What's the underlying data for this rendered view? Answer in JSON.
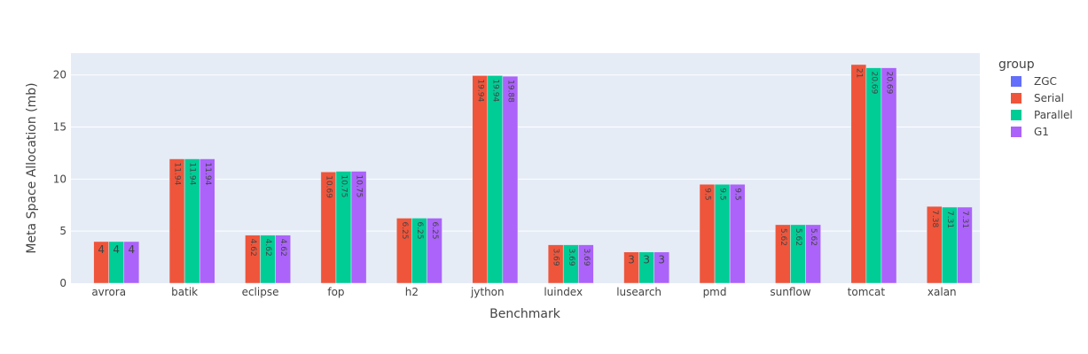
{
  "chart_data": {
    "type": "bar",
    "barmode": "group",
    "xlabel": "Benchmark",
    "ylabel": "Meta Space Allocation (mb)",
    "ylim": [
      0,
      22.1
    ],
    "yticks": [
      0,
      5,
      10,
      15,
      20
    ],
    "grid": true,
    "legend_title": "group",
    "legend_position": "right",
    "categories": [
      "avrora",
      "batik",
      "eclipse",
      "fop",
      "h2",
      "jython",
      "luindex",
      "lusearch",
      "pmd",
      "sunflow",
      "tomcat",
      "xalan"
    ],
    "series": [
      {
        "name": "ZGC",
        "color": "#636efa",
        "values": [
          null,
          null,
          null,
          null,
          null,
          null,
          null,
          null,
          null,
          null,
          null,
          null
        ],
        "labels": []
      },
      {
        "name": "Serial",
        "color": "#ef553b",
        "values": [
          4,
          11.94,
          4.62,
          10.69,
          6.25,
          19.94,
          3.69,
          3,
          9.5,
          5.62,
          21,
          7.38
        ],
        "labels": [
          "4",
          "11.94",
          "4.62",
          "10.69",
          "6.25",
          "19.94",
          "3.69",
          "3",
          "9.5",
          "5.62",
          "21",
          "7.38"
        ]
      },
      {
        "name": "Parallel",
        "color": "#00cc96",
        "values": [
          4,
          11.94,
          4.62,
          10.75,
          6.25,
          19.94,
          3.69,
          3,
          9.5,
          5.62,
          20.69,
          7.31
        ],
        "labels": [
          "4",
          "11.94",
          "4.62",
          "10.75",
          "6.25",
          "19.94",
          "3.69",
          "3",
          "9.5",
          "5.62",
          "20.69",
          "7.31"
        ]
      },
      {
        "name": "G1",
        "color": "#ab63fa",
        "values": [
          4,
          11.94,
          4.62,
          10.75,
          6.25,
          19.88,
          3.69,
          3,
          9.5,
          5.62,
          20.69,
          7.31
        ],
        "labels": [
          "4",
          "11.94",
          "4.62",
          "10.75",
          "6.25",
          "19.88",
          "3.69",
          "3",
          "9.5",
          "5.62",
          "20.69",
          "7.31"
        ]
      }
    ]
  }
}
